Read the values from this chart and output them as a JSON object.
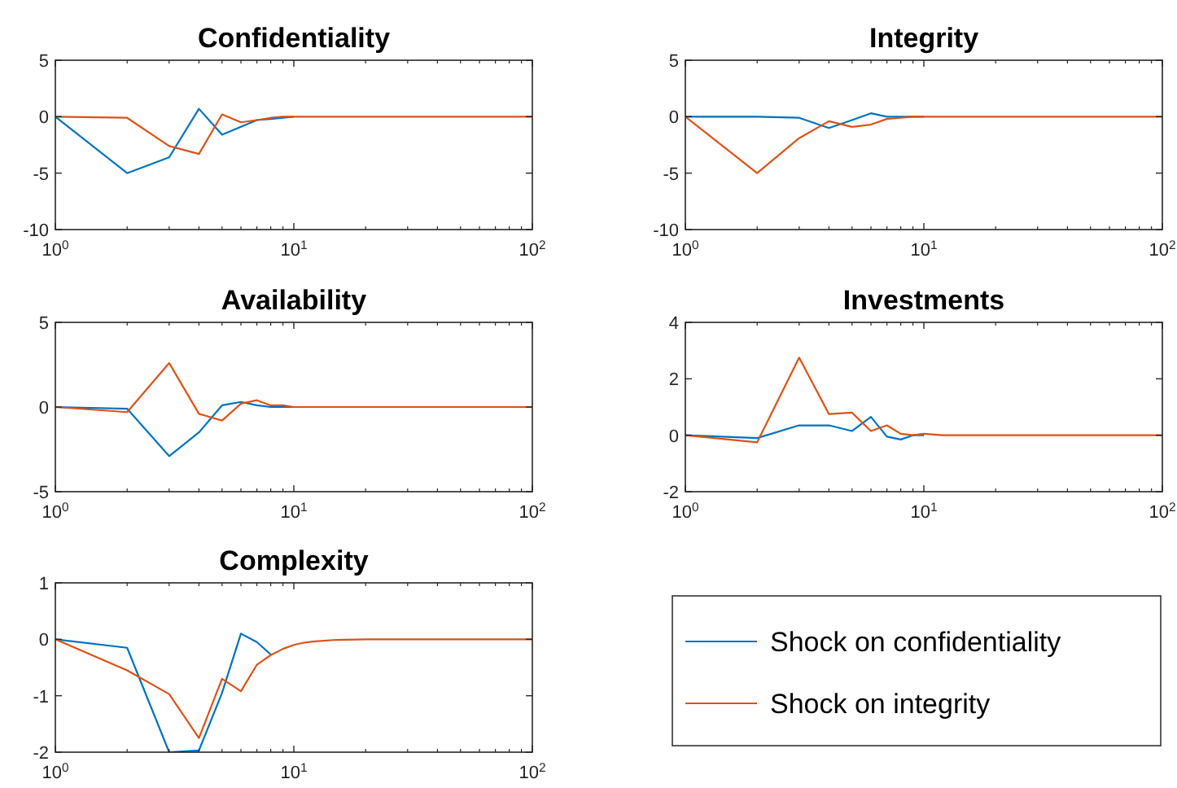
{
  "chart_data": [
    {
      "type": "line",
      "title": "Confidentiality",
      "x": [
        1,
        2,
        3,
        4,
        5,
        6,
        7,
        8,
        9,
        10,
        12,
        15,
        20,
        50,
        100
      ],
      "xlim": [
        1,
        100
      ],
      "xticks": [
        {
          "value": 1,
          "label": "10$^{0}$"
        },
        {
          "value": 10,
          "label": "10$^{1}$"
        },
        {
          "value": 100,
          "label": "10$^{2}$"
        }
      ],
      "log": "x",
      "ylim": [
        -10,
        5
      ],
      "yticks": [
        -10,
        -5,
        0,
        5
      ],
      "series": [
        {
          "color": "#0072bd",
          "values": [
            0,
            -5,
            -3.6,
            0.7,
            -1.6,
            -0.9,
            -0.3,
            -0.2,
            -0.1,
            0,
            null,
            null,
            null,
            null,
            null
          ]
        },
        {
          "color": "#d95319",
          "values": [
            0,
            -0.1,
            -2.6,
            -3.3,
            0.2,
            -0.5,
            -0.3,
            -0.1,
            0,
            0,
            0,
            0,
            0,
            0,
            0
          ]
        }
      ]
    },
    {
      "type": "line",
      "title": "Integrity",
      "x": [
        1,
        2,
        3,
        4,
        5,
        6,
        7,
        8,
        9,
        10,
        12,
        15,
        20,
        50,
        100
      ],
      "xlim": [
        1,
        100
      ],
      "xticks": [
        {
          "value": 1,
          "label": "10$^{0}$"
        },
        {
          "value": 10,
          "label": "10$^{1}$"
        },
        {
          "value": 100,
          "label": "10$^{2}$"
        }
      ],
      "log": "x",
      "ylim": [
        -10,
        5
      ],
      "yticks": [
        -10,
        -5,
        0,
        5
      ],
      "series": [
        {
          "color": "#0072bd",
          "values": [
            0,
            0,
            -0.1,
            -1,
            -0.3,
            0.3,
            0,
            0,
            0,
            0,
            null,
            null,
            null,
            null,
            null
          ]
        },
        {
          "color": "#d95319",
          "values": [
            0,
            -5,
            -1.9,
            -0.4,
            -0.9,
            -0.7,
            -0.2,
            -0.1,
            0,
            0,
            0,
            0,
            0,
            0,
            0
          ]
        }
      ]
    },
    {
      "type": "line",
      "title": "Availability",
      "x": [
        1,
        2,
        3,
        4,
        5,
        6,
        7,
        8,
        9,
        10,
        12,
        15,
        20,
        50,
        100
      ],
      "xlim": [
        1,
        100
      ],
      "xticks": [
        {
          "value": 1,
          "label": "10$^{0}$"
        },
        {
          "value": 10,
          "label": "10$^{1}$"
        },
        {
          "value": 100,
          "label": "10$^{2}$"
        }
      ],
      "log": "x",
      "ylim": [
        -5,
        5
      ],
      "yticks": [
        -5,
        0,
        5
      ],
      "series": [
        {
          "color": "#0072bd",
          "values": [
            0,
            -0.1,
            -2.9,
            -1.5,
            0.1,
            0.3,
            0.1,
            0,
            0,
            0,
            null,
            null,
            null,
            null,
            null
          ]
        },
        {
          "color": "#d95319",
          "values": [
            0,
            -0.3,
            2.6,
            -0.4,
            -0.8,
            0.2,
            0.4,
            0.1,
            0.1,
            0,
            0,
            0,
            0,
            0,
            0
          ]
        }
      ]
    },
    {
      "type": "line",
      "title": "Investments",
      "x": [
        1,
        2,
        3,
        4,
        5,
        6,
        7,
        8,
        9,
        10,
        12,
        15,
        20,
        50,
        100
      ],
      "xlim": [
        1,
        100
      ],
      "xticks": [
        {
          "value": 1,
          "label": "10$^{0}$"
        },
        {
          "value": 10,
          "label": "10$^{1}$"
        },
        {
          "value": 100,
          "label": "10$^{2}$"
        }
      ],
      "log": "x",
      "ylim": [
        -2,
        4
      ],
      "yticks": [
        -2,
        0,
        2,
        4
      ],
      "series": [
        {
          "color": "#0072bd",
          "values": [
            0,
            -0.1,
            0.35,
            0.35,
            0.15,
            0.65,
            -0.05,
            -0.15,
            0,
            0,
            null,
            null,
            null,
            null,
            null
          ]
        },
        {
          "color": "#d95319",
          "values": [
            0,
            -0.25,
            2.75,
            0.75,
            0.8,
            0.15,
            0.35,
            0.05,
            0,
            0.05,
            0,
            0,
            0,
            0,
            0
          ]
        }
      ]
    },
    {
      "type": "line",
      "title": "Complexity",
      "x": [
        1,
        2,
        3,
        4,
        5,
        6,
        7,
        8,
        9,
        10,
        11,
        12,
        15,
        20,
        50,
        100
      ],
      "xlim": [
        1,
        100
      ],
      "xticks": [
        {
          "value": 1,
          "label": "10$^{0}$"
        },
        {
          "value": 10,
          "label": "10$^{1}$"
        },
        {
          "value": 100,
          "label": "10$^{2}$"
        }
      ],
      "log": "x",
      "ylim": [
        -2,
        1
      ],
      "yticks": [
        -2,
        -1,
        0,
        1
      ],
      "legend": "right",
      "series": [
        {
          "name": "Shock on confidentiality",
          "color": "#0072bd",
          "values": [
            0,
            -0.15,
            -2,
            -1.97,
            -0.95,
            0.1,
            -0.05,
            -0.27,
            null,
            null,
            null,
            null,
            null,
            null,
            null,
            null
          ]
        },
        {
          "name": "Shock on integrity",
          "color": "#d95319",
          "values": [
            0,
            -0.55,
            -0.97,
            -1.75,
            -0.7,
            -0.92,
            -0.45,
            -0.28,
            -0.17,
            -0.1,
            -0.06,
            -0.04,
            -0.01,
            0,
            0,
            0
          ]
        }
      ]
    }
  ]
}
